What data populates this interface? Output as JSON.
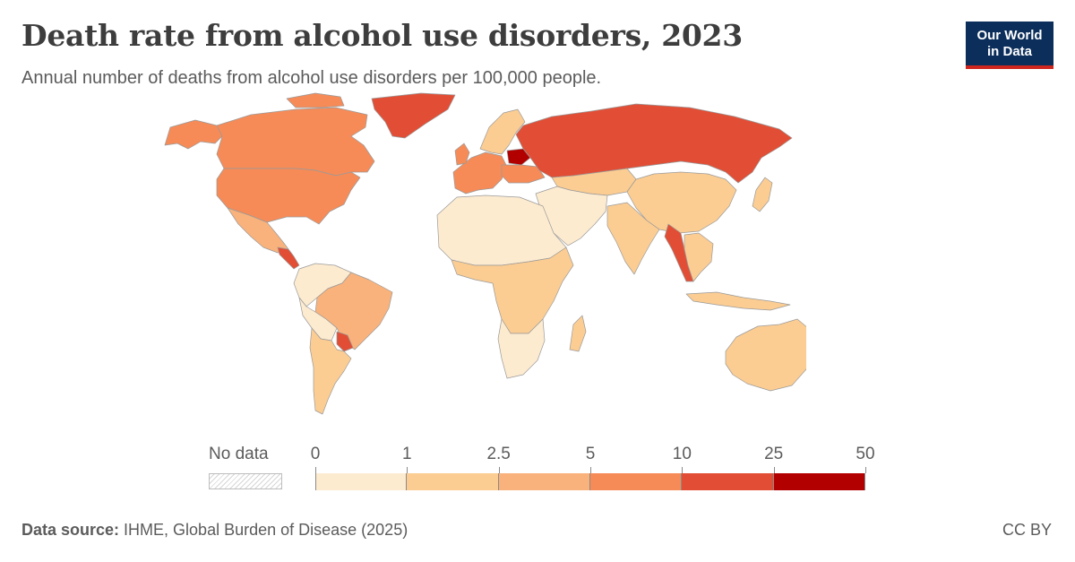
{
  "header": {
    "title": "Death rate from alcohol use disorders, 2023",
    "subtitle": "Annual number of deaths from alcohol use disorders per 100,000 people."
  },
  "logo": {
    "line1": "Our World",
    "line2": "in Data"
  },
  "legend": {
    "no_data_label": "No data",
    "ticks": [
      "0",
      "1",
      "2.5",
      "5",
      "10",
      "25",
      "50"
    ],
    "bins": [
      {
        "from": 0,
        "to": 1,
        "color": "#fdebd0"
      },
      {
        "from": 1,
        "to": 2.5,
        "color": "#fccd92"
      },
      {
        "from": 2.5,
        "to": 5,
        "color": "#f9b27b"
      },
      {
        "from": 5,
        "to": 10,
        "color": "#f68b57"
      },
      {
        "from": 10,
        "to": 25,
        "color": "#e14e35"
      },
      {
        "from": 25,
        "to": 50,
        "color": "#b20000"
      }
    ]
  },
  "footer": {
    "source_label": "Data source:",
    "source_text": " IHME, Global Burden of Disease (2025)",
    "license": "CC BY"
  },
  "map_regions": [
    {
      "name": "Canada",
      "color": "#f68b57"
    },
    {
      "name": "Greenland",
      "color": "#e14e35"
    },
    {
      "name": "United States",
      "color": "#f68b57"
    },
    {
      "name": "Mexico",
      "color": "#f9b27b"
    },
    {
      "name": "Central America",
      "color": "#e14e35"
    },
    {
      "name": "Northern South America",
      "color": "#fdebd0"
    },
    {
      "name": "Brazil",
      "color": "#f9b27b"
    },
    {
      "name": "Paraguay",
      "color": "#e14e35"
    },
    {
      "name": "Argentina",
      "color": "#fccd92"
    },
    {
      "name": "Western Europe",
      "color": "#f68b57"
    },
    {
      "name": "Scandinavia",
      "color": "#fccd92"
    },
    {
      "name": "Belarus",
      "color": "#b20000"
    },
    {
      "name": "Russia",
      "color": "#e14e35"
    },
    {
      "name": "Central Asia",
      "color": "#fccd92"
    },
    {
      "name": "China",
      "color": "#fccd92"
    },
    {
      "name": "Myanmar",
      "color": "#e14e35"
    },
    {
      "name": "India",
      "color": "#fccd92"
    },
    {
      "name": "North Africa and Middle East",
      "color": "#fdebd0"
    },
    {
      "name": "Sub-Saharan Africa",
      "color": "#fccd92"
    },
    {
      "name": "Southern Africa",
      "color": "#fdebd0"
    },
    {
      "name": "Southeast Asia",
      "color": "#fccd92"
    },
    {
      "name": "Australia",
      "color": "#fccd92"
    },
    {
      "name": "New Zealand",
      "color": "#fccd92"
    }
  ]
}
